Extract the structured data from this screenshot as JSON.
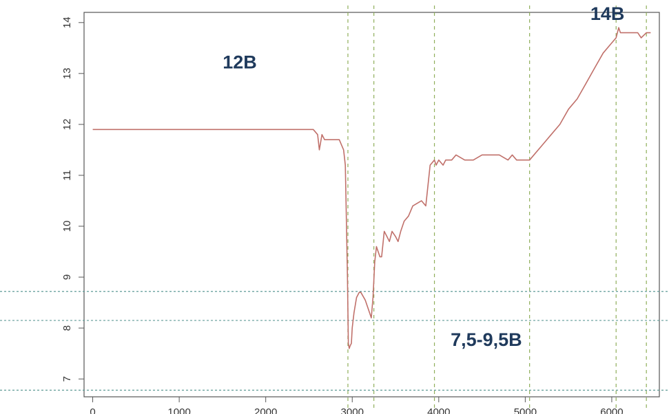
{
  "chart_data": {
    "type": "line",
    "title": "",
    "xlabel": "",
    "ylabel": "",
    "xlim": [
      -100,
      6550
    ],
    "ylim": [
      6.65,
      14.2
    ],
    "xticks": [
      0,
      1000,
      2000,
      3000,
      4000,
      5000,
      6000
    ],
    "yticks": [
      7,
      8,
      9,
      10,
      11,
      12,
      13,
      14
    ],
    "grid": false,
    "series": [
      {
        "color": "#c0706a",
        "x": [
          0,
          2550,
          2600,
          2620,
          2650,
          2680,
          2720,
          2800,
          2850,
          2900,
          2920,
          2930,
          2945,
          2955,
          2965,
          2975,
          2990,
          3000,
          3020,
          3050,
          3080,
          3100,
          3150,
          3200,
          3220,
          3240,
          3260,
          3280,
          3300,
          3320,
          3340,
          3370,
          3400,
          3430,
          3460,
          3500,
          3530,
          3560,
          3600,
          3650,
          3700,
          3800,
          3850,
          3900,
          3950,
          3970,
          4000,
          4050,
          4080,
          4100,
          4150,
          4200,
          4300,
          4400,
          4500,
          4600,
          4700,
          4800,
          4850,
          4900,
          5000,
          5050,
          5100,
          5200,
          5300,
          5400,
          5500,
          5600,
          5700,
          5800,
          5900,
          6000,
          6050,
          6080,
          6100,
          6150,
          6200,
          6300,
          6340,
          6400,
          6450
        ],
        "y": [
          11.9,
          11.9,
          11.8,
          11.5,
          11.8,
          11.7,
          11.7,
          11.7,
          11.7,
          11.5,
          11.2,
          10.3,
          9.0,
          7.7,
          7.6,
          7.65,
          7.7,
          8.0,
          8.3,
          8.6,
          8.7,
          8.7,
          8.55,
          8.3,
          8.2,
          8.6,
          9.3,
          9.6,
          9.5,
          9.4,
          9.4,
          9.9,
          9.8,
          9.7,
          9.9,
          9.8,
          9.7,
          9.9,
          10.1,
          10.2,
          10.4,
          10.5,
          10.4,
          11.2,
          11.3,
          11.2,
          11.3,
          11.2,
          11.3,
          11.3,
          11.3,
          11.4,
          11.3,
          11.3,
          11.4,
          11.4,
          11.4,
          11.3,
          11.4,
          11.3,
          11.3,
          11.3,
          11.4,
          11.6,
          11.8,
          12.0,
          12.3,
          12.5,
          12.8,
          13.1,
          13.4,
          13.6,
          13.7,
          13.9,
          13.8,
          13.8,
          13.8,
          13.8,
          13.7,
          13.8,
          13.8
        ]
      }
    ],
    "vlines": [
      2950,
      3250,
      3950,
      5050,
      6050,
      6400
    ],
    "hlines": [
      8.72,
      8.15,
      6.78
    ],
    "annotations": [
      {
        "text": "12B",
        "x": 1700,
        "y": 13.1
      },
      {
        "text": "7,5-9,5B",
        "x": 4550,
        "y": 7.65
      },
      {
        "text": "14B",
        "x": 5950,
        "y": 14.05
      }
    ]
  }
}
